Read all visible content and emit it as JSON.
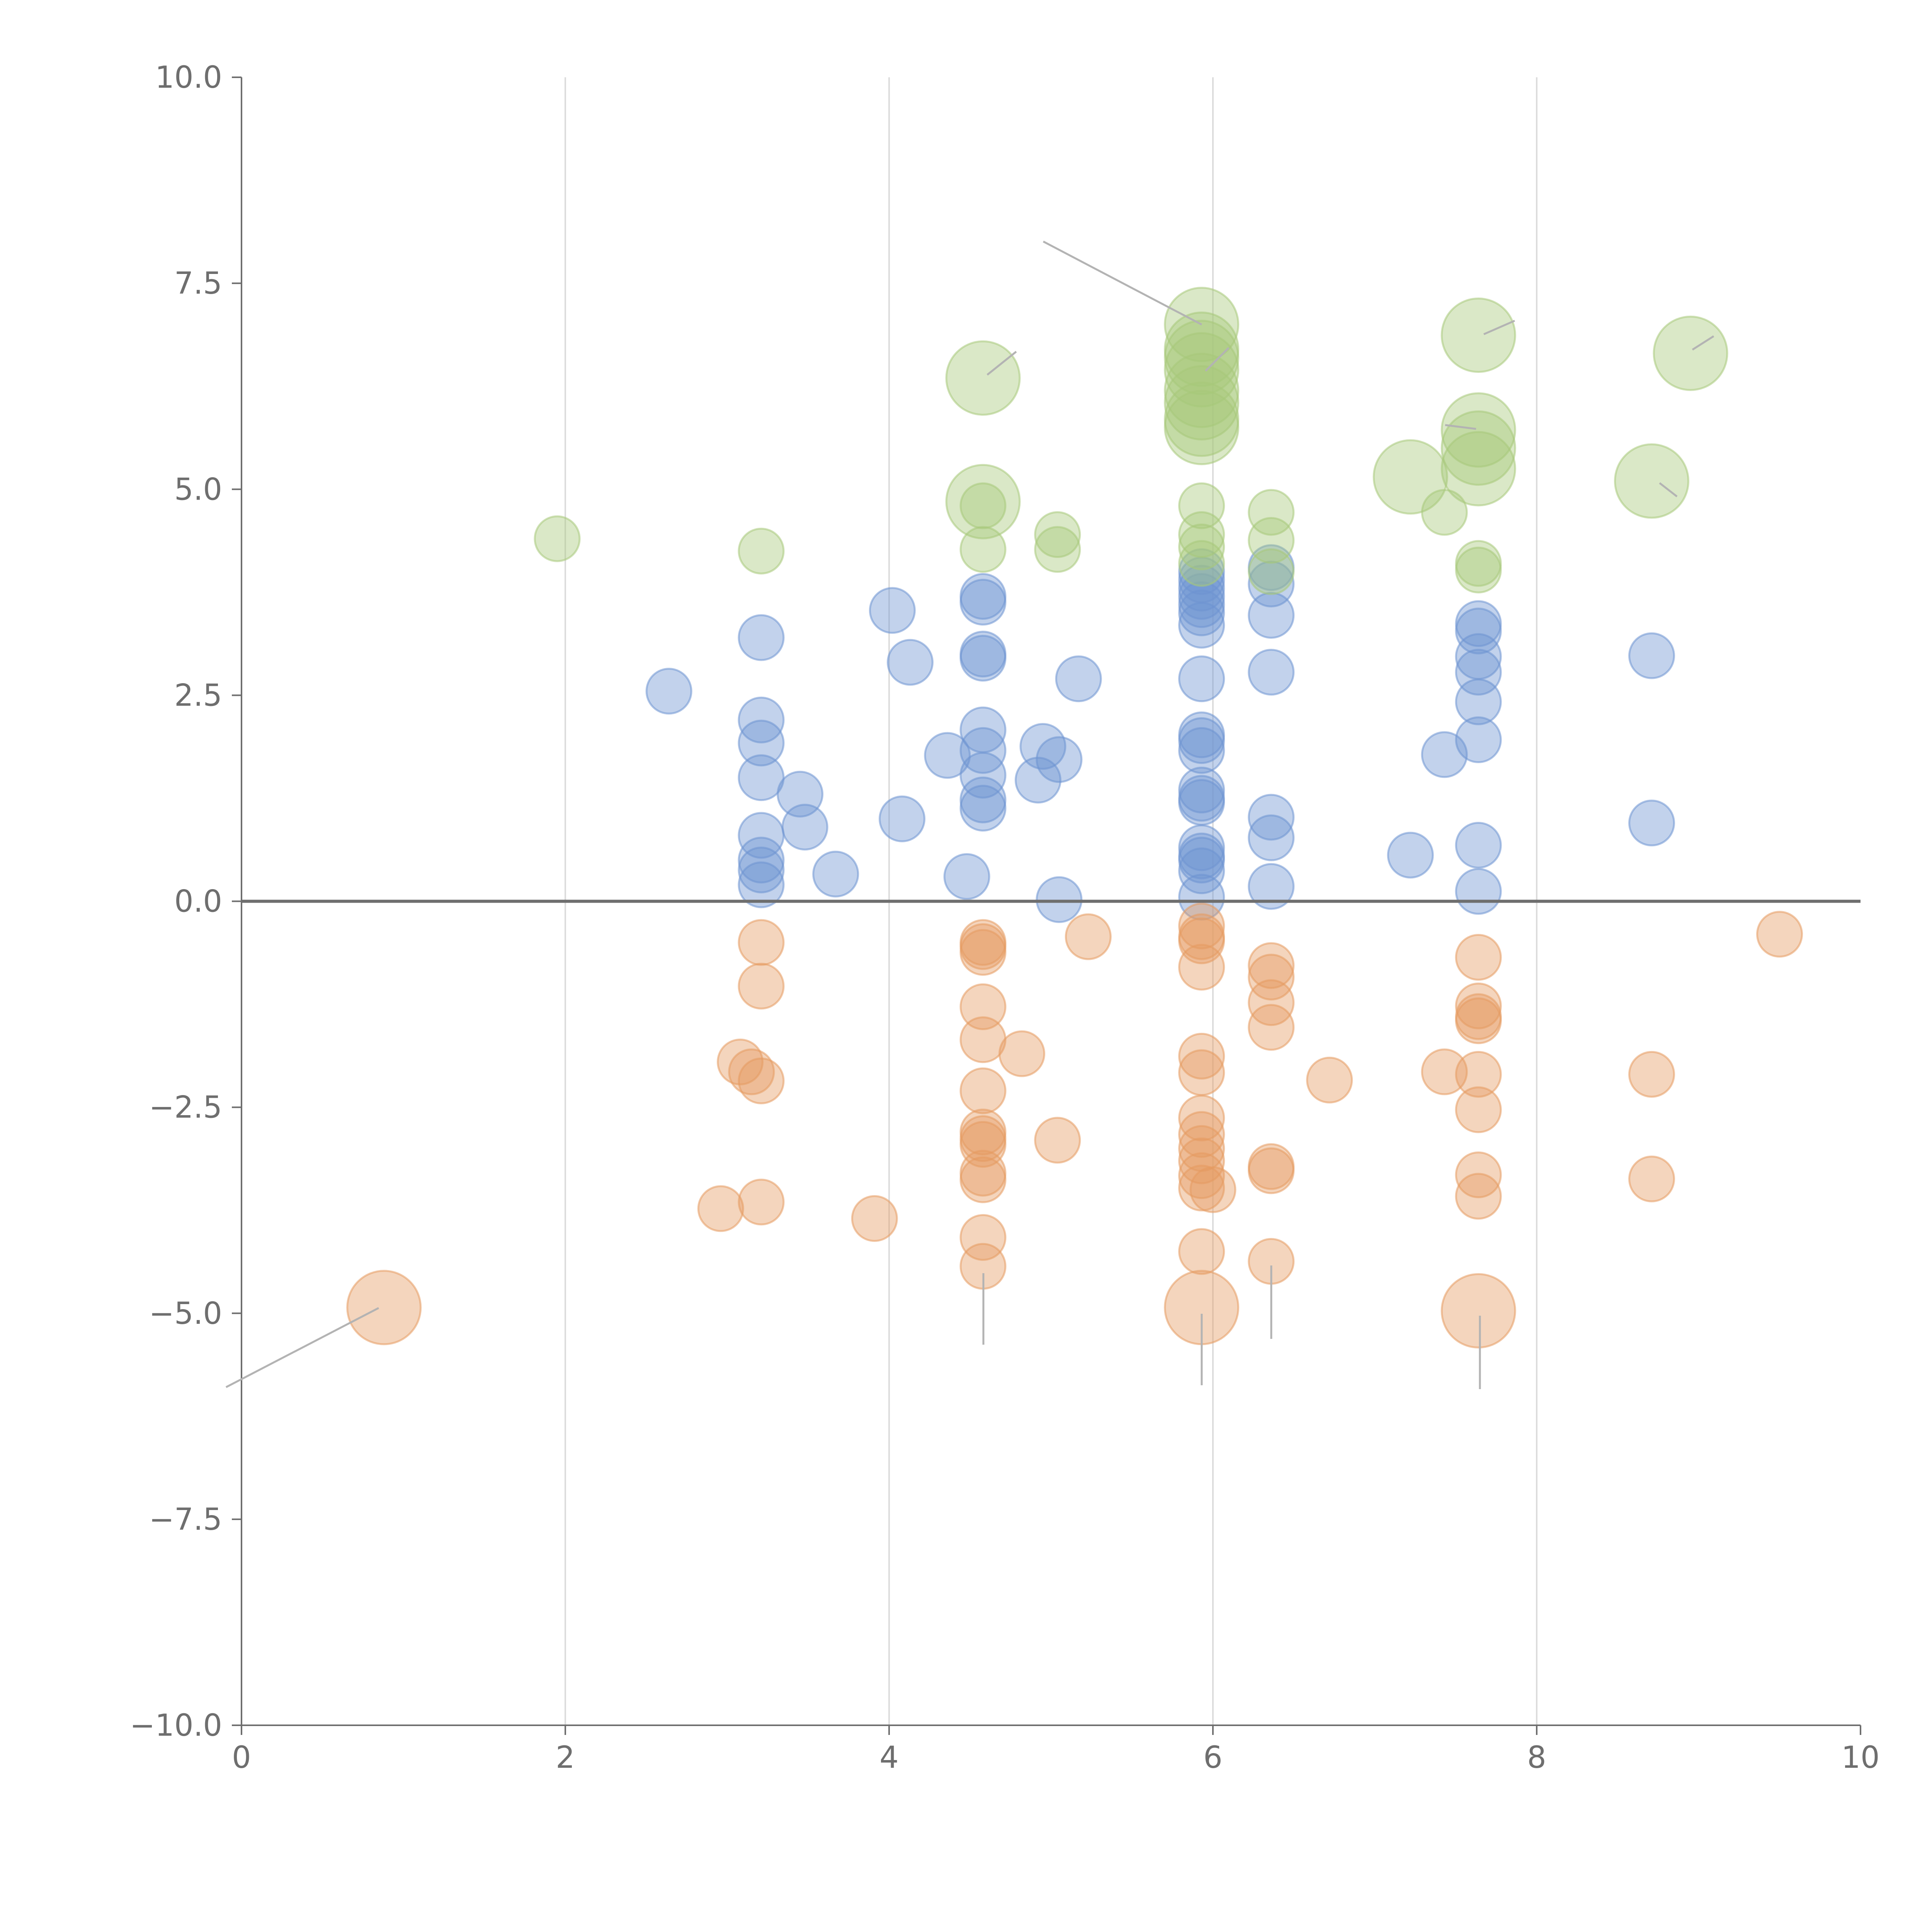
{
  "colors": {
    "positive": "#6d93d1",
    "negative": "#e59b61",
    "top": "#a7c97a",
    "axis": "#6e6e6e",
    "grid": "#dcdcdc",
    "leader": "#b3b3b3"
  },
  "chart_data": {
    "type": "scatter",
    "title": "",
    "xlabel": "",
    "ylabel": "",
    "xlim": [
      0,
      10
    ],
    "ylim": [
      -10,
      10
    ],
    "x_ticks": [
      "0",
      "2",
      "4",
      "6",
      "8",
      "10"
    ],
    "y_ticks": [
      "10.0",
      "7.5",
      "5.0",
      "2.5",
      "0.0",
      "−2.5",
      "−5.0",
      "−7.5",
      "−10.0"
    ],
    "vertical_grid_at": [
      2,
      4,
      6,
      8
    ],
    "zero_line": 0,
    "series": [
      {
        "name": "positive",
        "color_key": "positive",
        "points": [
          [
            2.64,
            2.55
          ],
          [
            3.21,
            3.2
          ],
          [
            3.21,
            2.2
          ],
          [
            3.21,
            1.92
          ],
          [
            3.21,
            1.5
          ],
          [
            3.21,
            0.8
          ],
          [
            3.21,
            0.5
          ],
          [
            3.21,
            0.38
          ],
          [
            3.21,
            0.2
          ],
          [
            3.45,
            1.3
          ],
          [
            3.48,
            0.9
          ],
          [
            3.67,
            0.33
          ],
          [
            4.02,
            3.53
          ],
          [
            4.08,
            1.0
          ],
          [
            4.13,
            2.9
          ],
          [
            4.36,
            1.77
          ],
          [
            4.48,
            0.3
          ],
          [
            4.58,
            3.7
          ],
          [
            4.58,
            3.63
          ],
          [
            4.58,
            3.0
          ],
          [
            4.58,
            2.95
          ],
          [
            4.58,
            2.08
          ],
          [
            4.58,
            1.83
          ],
          [
            4.58,
            1.53
          ],
          [
            4.58,
            1.23
          ],
          [
            4.58,
            1.13
          ],
          [
            4.92,
            1.47
          ],
          [
            4.95,
            1.88
          ],
          [
            5.05,
            1.72
          ],
          [
            5.05,
            0.02
          ],
          [
            5.17,
            2.7
          ],
          [
            5.93,
            4.0
          ],
          [
            5.93,
            3.9
          ],
          [
            5.93,
            3.8
          ],
          [
            5.93,
            3.7
          ],
          [
            5.93,
            3.6
          ],
          [
            5.93,
            3.5
          ],
          [
            5.93,
            3.35
          ],
          [
            5.93,
            2.7
          ],
          [
            5.93,
            2.02
          ],
          [
            5.93,
            1.95
          ],
          [
            5.93,
            1.83
          ],
          [
            5.93,
            1.35
          ],
          [
            5.93,
            1.25
          ],
          [
            5.93,
            1.2
          ],
          [
            5.93,
            0.65
          ],
          [
            5.93,
            0.55
          ],
          [
            5.93,
            0.5
          ],
          [
            5.93,
            0.37
          ],
          [
            5.93,
            0.05
          ],
          [
            6.36,
            4.05
          ],
          [
            6.36,
            3.85
          ],
          [
            6.36,
            3.47
          ],
          [
            6.36,
            2.78
          ],
          [
            6.36,
            1.02
          ],
          [
            6.36,
            0.77
          ],
          [
            6.36,
            0.18
          ],
          [
            7.22,
            0.56
          ],
          [
            7.43,
            1.78
          ],
          [
            7.64,
            3.37
          ],
          [
            7.64,
            3.28
          ],
          [
            7.64,
            2.97
          ],
          [
            7.64,
            2.78
          ],
          [
            7.64,
            2.42
          ],
          [
            7.64,
            1.96
          ],
          [
            7.64,
            0.68
          ],
          [
            7.64,
            0.12
          ],
          [
            8.71,
            2.98
          ],
          [
            8.71,
            0.95
          ]
        ]
      },
      {
        "name": "negative",
        "color_key": "negative",
        "points": [
          [
            0.88,
            -4.93
          ],
          [
            2.96,
            -3.73
          ],
          [
            3.08,
            -1.95
          ],
          [
            3.15,
            -2.07
          ],
          [
            3.21,
            -2.18
          ],
          [
            3.21,
            -3.65
          ],
          [
            3.21,
            -0.5
          ],
          [
            3.21,
            -1.03
          ],
          [
            3.91,
            -3.85
          ],
          [
            4.58,
            -0.5
          ],
          [
            4.58,
            -0.55
          ],
          [
            4.58,
            -0.62
          ],
          [
            4.58,
            -1.28
          ],
          [
            4.58,
            -1.68
          ],
          [
            4.58,
            -2.3
          ],
          [
            4.58,
            -2.8
          ],
          [
            4.58,
            -2.88
          ],
          [
            4.58,
            -2.95
          ],
          [
            4.58,
            -3.3
          ],
          [
            4.58,
            -3.38
          ],
          [
            4.58,
            -4.08
          ],
          [
            4.58,
            -4.43
          ],
          [
            4.82,
            -1.85
          ],
          [
            5.04,
            -2.9
          ],
          [
            5.23,
            -0.43
          ],
          [
            5.93,
            -0.3
          ],
          [
            5.93,
            -0.43
          ],
          [
            5.93,
            -0.48
          ],
          [
            5.93,
            -0.8
          ],
          [
            5.93,
            -1.88
          ],
          [
            5.93,
            -2.08
          ],
          [
            5.93,
            -2.63
          ],
          [
            5.93,
            -2.83
          ],
          [
            5.93,
            -3.0
          ],
          [
            5.93,
            -3.15
          ],
          [
            5.93,
            -3.33
          ],
          [
            5.93,
            -3.48
          ],
          [
            5.93,
            -4.25
          ],
          [
            5.93,
            -4.93
          ],
          [
            6.0,
            -3.5
          ],
          [
            6.36,
            -0.78
          ],
          [
            6.36,
            -0.92
          ],
          [
            6.36,
            -1.23
          ],
          [
            6.36,
            -1.53
          ],
          [
            6.36,
            -3.22
          ],
          [
            6.36,
            -3.27
          ],
          [
            6.36,
            -4.37
          ],
          [
            6.72,
            -2.17
          ],
          [
            7.43,
            -2.07
          ],
          [
            7.64,
            -0.68
          ],
          [
            7.64,
            -1.27
          ],
          [
            7.64,
            -1.4
          ],
          [
            7.64,
            -1.45
          ],
          [
            7.64,
            -2.1
          ],
          [
            7.64,
            -2.53
          ],
          [
            7.64,
            -3.32
          ],
          [
            7.64,
            -3.58
          ],
          [
            7.64,
            -4.97
          ],
          [
            8.71,
            -2.1
          ],
          [
            8.71,
            -3.37
          ],
          [
            9.5,
            -0.4
          ]
        ]
      },
      {
        "name": "top",
        "color_key": "top",
        "points": [
          [
            1.95,
            4.4
          ],
          [
            3.21,
            4.25
          ],
          [
            4.58,
            6.35
          ],
          [
            4.58,
            4.85
          ],
          [
            4.58,
            4.8
          ],
          [
            4.58,
            4.27
          ],
          [
            5.04,
            4.45
          ],
          [
            5.04,
            4.27
          ],
          [
            5.93,
            7.0
          ],
          [
            5.93,
            6.7
          ],
          [
            5.93,
            6.6
          ],
          [
            5.93,
            6.45
          ],
          [
            5.93,
            6.2
          ],
          [
            5.93,
            6.05
          ],
          [
            5.93,
            5.85
          ],
          [
            5.93,
            5.75
          ],
          [
            5.93,
            4.8
          ],
          [
            5.93,
            4.45
          ],
          [
            5.93,
            4.3
          ],
          [
            5.93,
            4.1
          ],
          [
            6.36,
            4.72
          ],
          [
            6.36,
            4.38
          ],
          [
            6.36,
            4.0
          ],
          [
            7.22,
            5.15
          ],
          [
            7.43,
            4.72
          ],
          [
            7.64,
            6.87
          ],
          [
            7.64,
            5.72
          ],
          [
            7.64,
            5.5
          ],
          [
            7.64,
            5.25
          ],
          [
            7.64,
            4.1
          ],
          [
            7.64,
            4.02
          ],
          [
            8.71,
            5.1
          ],
          [
            8.95,
            6.65
          ]
        ]
      }
    ]
  }
}
